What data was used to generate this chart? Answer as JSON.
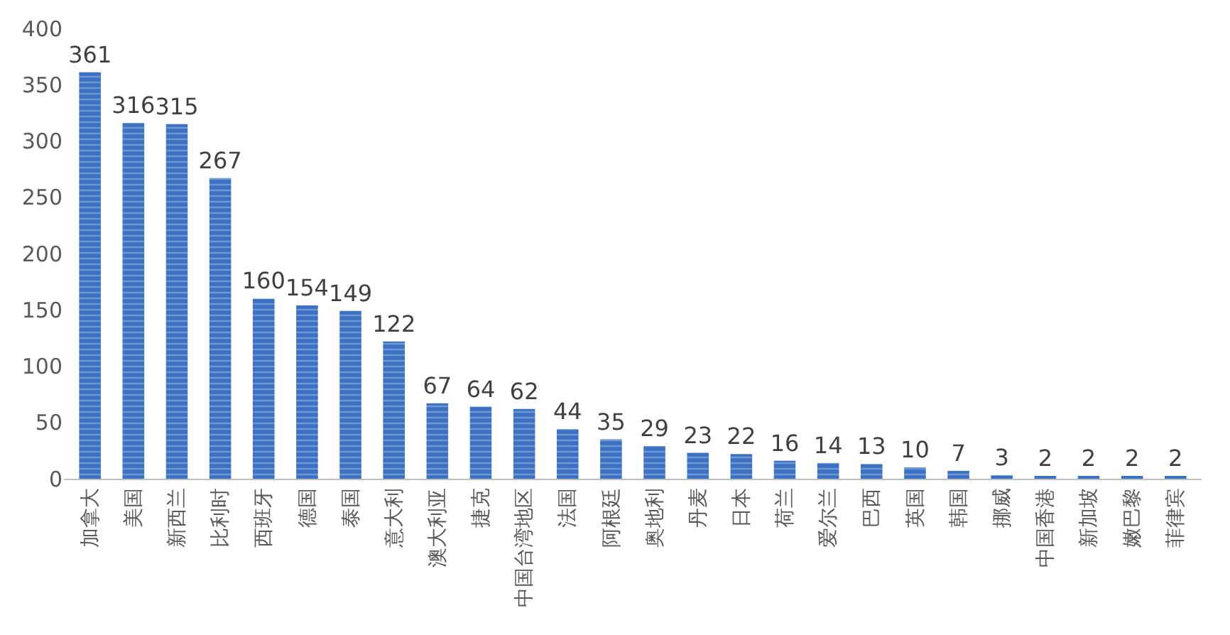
{
  "chart_data": {
    "type": "bar",
    "categories": [
      "加拿大",
      "美国",
      "新西兰",
      "比利时",
      "西班牙",
      "德国",
      "泰国",
      "意大利",
      "澳大利亚",
      "捷克",
      "中国台湾地区",
      "法国",
      "阿根廷",
      "奥地利",
      "丹麦",
      "日本",
      "荷兰",
      "爱尔兰",
      "巴西",
      "英国",
      "韩国",
      "挪威",
      "中国香港",
      "新加坡",
      "嫩巴黎",
      "菲律宾"
    ],
    "values": [
      361,
      316,
      315,
      267,
      160,
      154,
      149,
      122,
      67,
      64,
      62,
      44,
      35,
      29,
      23,
      22,
      16,
      14,
      13,
      10,
      7,
      3,
      2,
      2,
      2,
      2
    ],
    "color": "#3b70c2",
    "ylim": [
      0,
      400
    ],
    "yticks": [
      0,
      50,
      100,
      150,
      200,
      250,
      300,
      350,
      400
    ],
    "grid": false,
    "data_labels": true
  }
}
